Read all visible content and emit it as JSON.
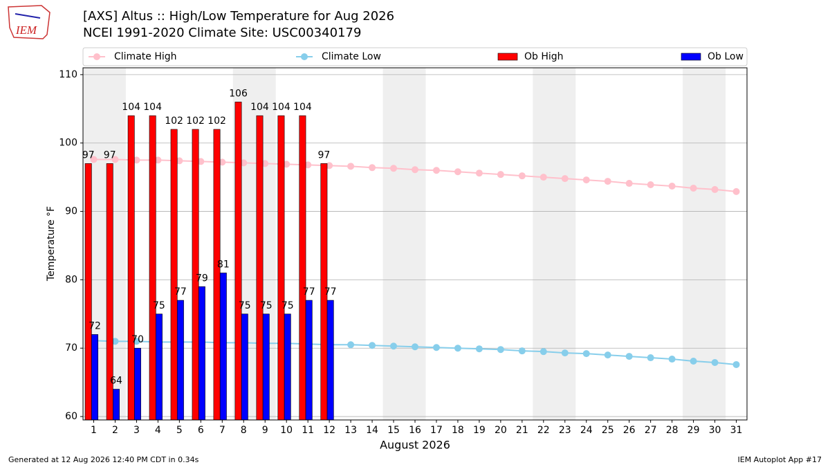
{
  "logo_text": "IEM",
  "chart_data": {
    "type": "bar",
    "title": "[AXS] Altus :: High/Low Temperature for Aug 2026",
    "subtitle": "NCEI 1991-2020 Climate Site: USC00340179",
    "xlabel": "August 2026",
    "ylabel": "Temperature °F",
    "footer_left": "Generated at 12 Aug 2026 12:40 PM CDT in 0.34s",
    "footer_right": "IEM Autoplot App #17",
    "x": [
      1,
      2,
      3,
      4,
      5,
      6,
      7,
      8,
      9,
      10,
      11,
      12,
      13,
      14,
      15,
      16,
      17,
      18,
      19,
      20,
      21,
      22,
      23,
      24,
      25,
      26,
      27,
      28,
      29,
      30,
      31
    ],
    "xticks": [
      1,
      2,
      3,
      4,
      5,
      6,
      7,
      8,
      9,
      10,
      11,
      12,
      13,
      14,
      15,
      16,
      17,
      18,
      19,
      20,
      21,
      22,
      23,
      24,
      25,
      26,
      27,
      28,
      29,
      30,
      31
    ],
    "xlim": [
      0.5,
      31.5
    ],
    "ylim": [
      59.5,
      111
    ],
    "yticks": [
      60,
      70,
      80,
      90,
      100,
      110
    ],
    "grid": true,
    "shaded": [
      [
        0.5,
        2.5
      ],
      [
        7.5,
        9.5
      ],
      [
        14.5,
        16.5
      ],
      [
        21.5,
        23.5
      ],
      [
        28.5,
        30.5
      ]
    ],
    "series": [
      {
        "name": "Climate High",
        "type": "line",
        "color": "#ffc0cb",
        "values": [
          97.6,
          97.6,
          97.5,
          97.5,
          97.4,
          97.3,
          97.2,
          97.1,
          97.0,
          96.9,
          96.8,
          96.7,
          96.6,
          96.4,
          96.3,
          96.1,
          96.0,
          95.8,
          95.6,
          95.4,
          95.2,
          95.0,
          94.8,
          94.6,
          94.4,
          94.1,
          93.9,
          93.7,
          93.4,
          93.2,
          92.9
        ]
      },
      {
        "name": "Climate Low",
        "type": "line",
        "color": "#87ceeb",
        "values": [
          71.1,
          71.0,
          71.0,
          70.9,
          70.9,
          70.9,
          70.8,
          70.8,
          70.7,
          70.7,
          70.6,
          70.5,
          70.5,
          70.4,
          70.3,
          70.2,
          70.1,
          70.0,
          69.9,
          69.8,
          69.6,
          69.5,
          69.3,
          69.2,
          69.0,
          68.8,
          68.6,
          68.4,
          68.1,
          67.9,
          67.6
        ]
      },
      {
        "name": "Ob High",
        "type": "bar",
        "color": "#ff0000",
        "offset": -0.25,
        "values": [
          97,
          97,
          104,
          104,
          102,
          102,
          102,
          106,
          104,
          104,
          104,
          97,
          null,
          null,
          null,
          null,
          null,
          null,
          null,
          null,
          null,
          null,
          null,
          null,
          null,
          null,
          null,
          null,
          null,
          null,
          null
        ]
      },
      {
        "name": "Ob Low",
        "type": "bar",
        "color": "#0000ff",
        "offset": 0.05,
        "values": [
          72,
          64,
          70,
          75,
          77,
          79,
          81,
          75,
          75,
          75,
          77,
          77,
          null,
          null,
          null,
          null,
          null,
          null,
          null,
          null,
          null,
          null,
          null,
          null,
          null,
          null,
          null,
          null,
          null,
          null,
          null
        ]
      }
    ]
  }
}
